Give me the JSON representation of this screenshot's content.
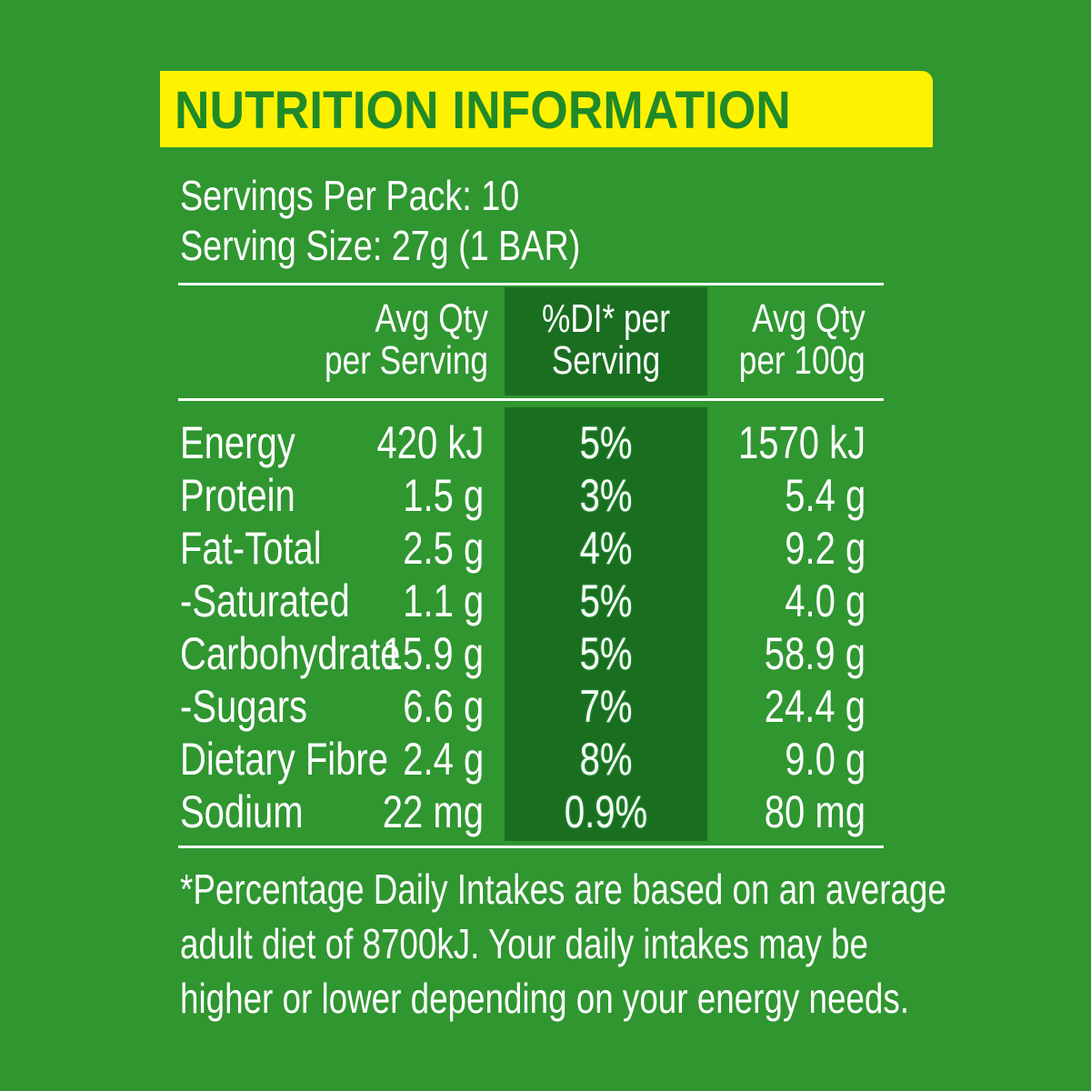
{
  "title": "NUTRITION INFORMATION",
  "servings": {
    "per_pack": "Servings Per Pack: 10",
    "size": "Serving Size: 27g (1 BAR)"
  },
  "headers": {
    "serving_l1": "Avg Qty",
    "serving_l2": "per Serving",
    "di_l1": "%DI* per",
    "di_l2": "Serving",
    "per100_l1": "Avg Qty",
    "per100_l2": "per 100g"
  },
  "rows": [
    {
      "name": "Energy",
      "serving": "420 kJ",
      "di": "5%",
      "per100": "1570 kJ"
    },
    {
      "name": "Protein",
      "serving": "1.5 g",
      "di": "3%",
      "per100": "5.4 g"
    },
    {
      "name": "Fat-Total",
      "serving": "2.5 g",
      "di": "4%",
      "per100": "9.2 g"
    },
    {
      "name": "-Saturated",
      "serving": "1.1 g",
      "di": "5%",
      "per100": "4.0 g"
    },
    {
      "name": "Carbohydrate",
      "serving": "15.9 g",
      "di": "5%",
      "per100": "58.9 g"
    },
    {
      "name": "-Sugars",
      "serving": "6.6 g",
      "di": "7%",
      "per100": "24.4 g"
    },
    {
      "name": "Dietary Fibre",
      "serving": "2.4 g",
      "di": "8%",
      "per100": "9.0 g"
    },
    {
      "name": "Sodium",
      "serving": "22 mg",
      "di": "0.9%",
      "per100": "80 mg"
    }
  ],
  "footnote": {
    "line1": "*Percentage Daily Intakes are based on an average",
    "line2": "adult diet of 8700kJ. Your daily intakes may be",
    "line3": "higher or lower depending on your energy needs."
  },
  "colors": {
    "background": "#2f9630",
    "title_bar": "#fff200",
    "title_text": "#1f8a2a",
    "di_column": "#1a6e20"
  }
}
